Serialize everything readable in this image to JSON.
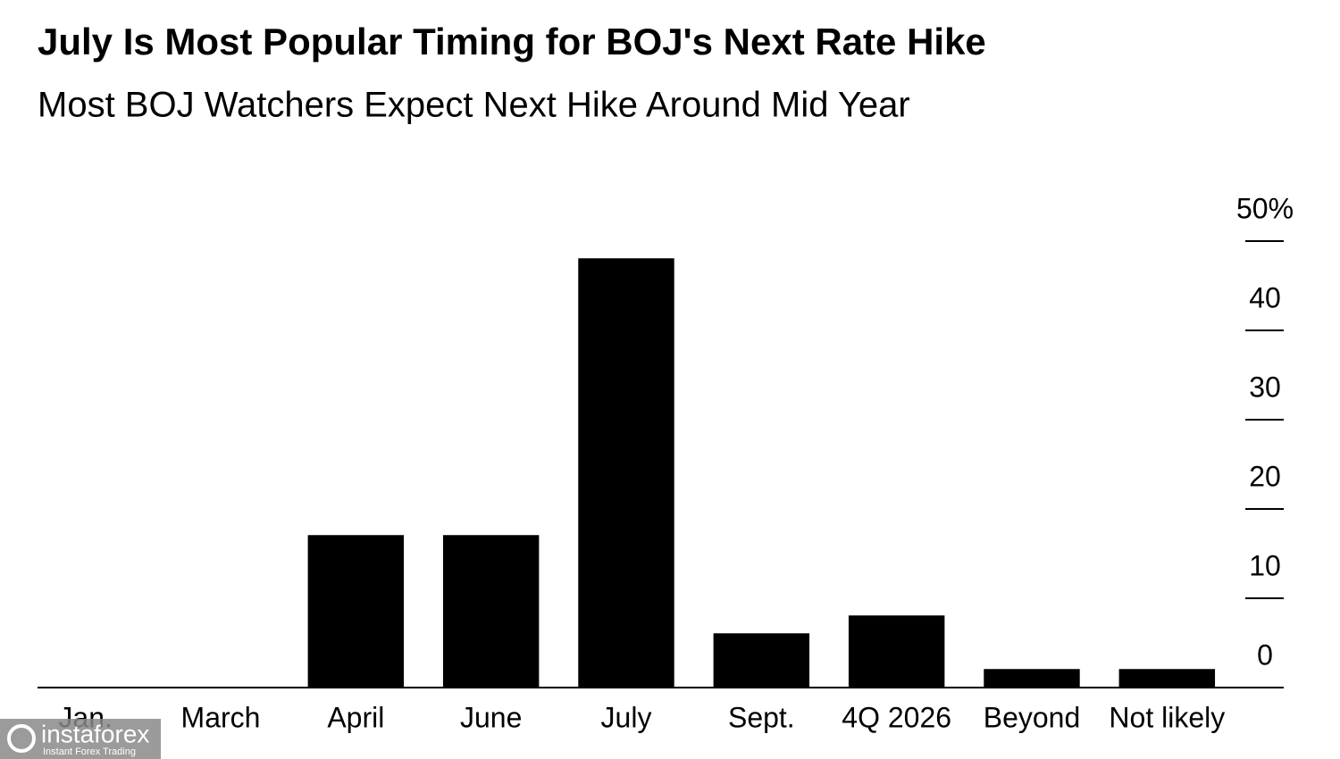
{
  "chart_data": {
    "type": "bar",
    "title": "July Is Most Popular Timing for BOJ's Next Rate Hike",
    "subtitle": "Most BOJ Watchers Expect Next Hike Around Mid Year",
    "categories": [
      "Jan.",
      "March",
      "April",
      "June",
      "July",
      "Sept.",
      "4Q 2026",
      "Beyond",
      "Not likely"
    ],
    "values": [
      0,
      0,
      17,
      17,
      48,
      6,
      8,
      2,
      2
    ],
    "color": "#000000",
    "ylim": [
      0,
      50
    ],
    "yticks": [
      0,
      10,
      20,
      30,
      40,
      {
        "value": 50,
        "label": "50%"
      }
    ],
    "axis_side": "right"
  },
  "watermark": {
    "brand": "instaforex",
    "tagline": "Instant Forex Trading"
  }
}
